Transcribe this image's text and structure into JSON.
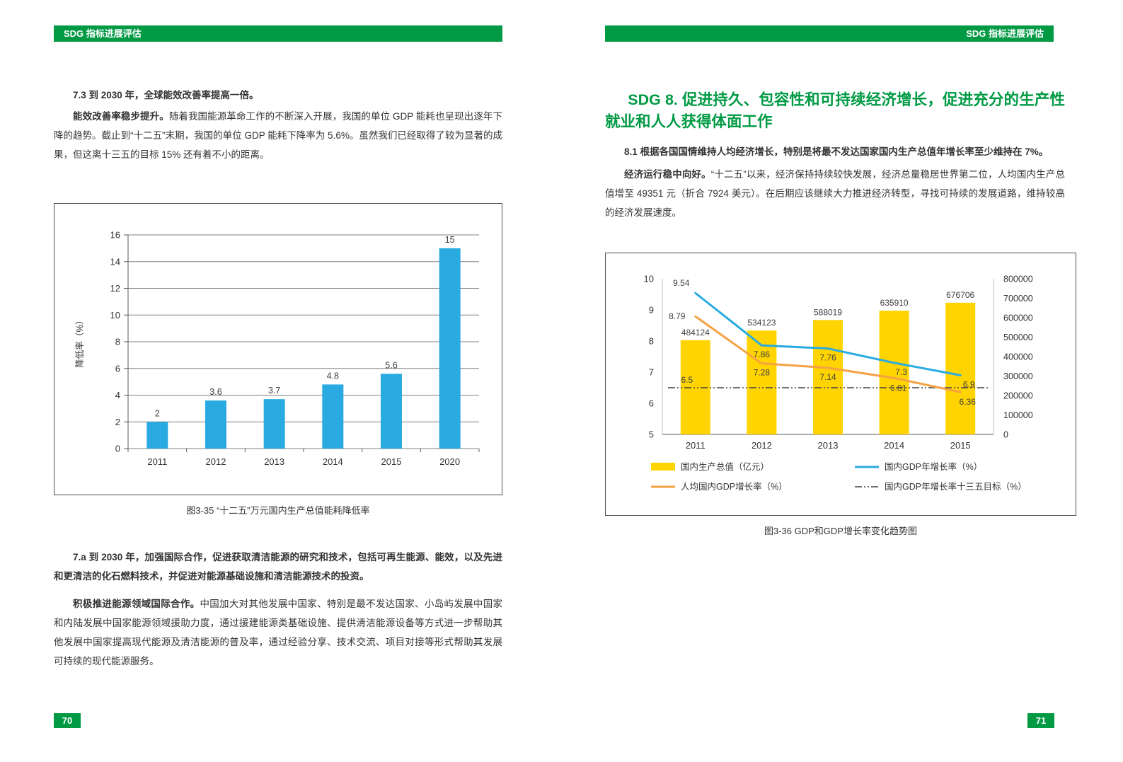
{
  "colors": {
    "green": "#009a44",
    "bar_blue": "#29abe2",
    "bar_yellow": "#ffd400",
    "line_blue": "#29abe2",
    "line_orange": "#f5a243",
    "target_line": "#404040"
  },
  "left_page": {
    "header": "SDG 指标进展评估",
    "page_number": "70",
    "section_7_3": {
      "title": "7.3 到 2030 年，全球能效改善率提高一倍。",
      "lead": "能效改善率稳步提升。",
      "body": "随着我国能源革命工作的不断深入开展，我国的单位 GDP 能耗也呈现出逐年下降的趋势。截止到“十二五”末期，我国的单位 GDP 能耗下降率为 5.6%。虽然我们已经取得了较为显著的成果，但这离十三五的目标 15% 还有着不小的距离。"
    },
    "section_7_a": {
      "title": "7.a 到 2030 年，加强国际合作，促进获取清洁能源的研究和技术，包括可再生能源、能效，以及先进和更清洁的化石燃料技术，并促进对能源基础设施和清洁能源技术的投资。",
      "lead": "积极推进能源领域国际合作。",
      "body": "中国加大对其他发展中国家、特别是最不发达国家、小岛屿发展中国家和内陆发展中国家能源领域援助力度，通过援建能源类基础设施、提供清洁能源设备等方式进一步帮助其他发展中国家提高现代能源及清洁能源的普及率，通过经验分享、技术交流、项目对接等形式帮助其发展可持续的现代能源服务。"
    }
  },
  "right_page": {
    "header": "SDG 指标进展评估",
    "page_number": "71",
    "sdg8_title": "SDG 8. 促进持久、包容性和可持续经济增长，促进充分的生产性就业和人人获得体面工作",
    "section_8_1": {
      "title": "8.1 根据各国国情维持人均经济增长，特别是将最不发达国家国内生产总值年增长率至少维持在 7%。",
      "lead": "经济运行稳中向好。",
      "body": "“十二五”以来，经济保持持续较快发展，经济总量稳居世界第二位，人均国内生产总值增至 49351 元（折合 7924 美元）。在后期应该继续大力推进经济转型，寻找可持续的发展道路，维持较高的经济发展速度。"
    }
  },
  "chart_data": [
    {
      "id": "energy-intensity-reduction",
      "type": "bar",
      "title": "图3-35 “十二五”万元国内生产总值能耗降低率",
      "categories": [
        "2011",
        "2012",
        "2013",
        "2014",
        "2015",
        "2020"
      ],
      "values": [
        2,
        3.6,
        3.7,
        4.8,
        5.6,
        15
      ],
      "xlabel": "",
      "ylabel": "降低率（%）",
      "ylim": [
        0,
        16
      ],
      "ytick_step": 2,
      "bar_color": "#29abe2",
      "grid": true,
      "legend": "none"
    },
    {
      "id": "gdp-and-growth-trend",
      "type": "combo",
      "title": "图3-36 GDP和GDP增长率变化趋势图",
      "categories": [
        "2011",
        "2012",
        "2013",
        "2014",
        "2015"
      ],
      "series": [
        {
          "name": "国内生产总值（亿元）",
          "type": "bar",
          "axis": "right",
          "color": "#ffd400",
          "values": [
            484124,
            534123,
            588019,
            635910,
            676706
          ]
        },
        {
          "name": "国内GDP年增长率（%）",
          "type": "line",
          "axis": "left",
          "color": "#29abe2",
          "values": [
            9.54,
            7.86,
            7.76,
            7.3,
            6.9
          ]
        },
        {
          "name": "人均国内GDP增长率（%）",
          "type": "line",
          "axis": "left",
          "color": "#f5a243",
          "values": [
            8.79,
            7.28,
            7.14,
            6.81,
            6.36
          ]
        },
        {
          "name": "国内GDP年增长率十三五目标（%）",
          "type": "dashline",
          "axis": "left",
          "color": "#404040",
          "values": [
            6.5,
            6.5,
            6.5,
            6.5,
            6.5
          ]
        }
      ],
      "left_ylim": [
        5,
        10
      ],
      "left_tick_step": 1,
      "right_ylim": [
        0,
        800000
      ],
      "right_tick_step": 100000,
      "grid": false,
      "legend_position": "bottom"
    }
  ]
}
